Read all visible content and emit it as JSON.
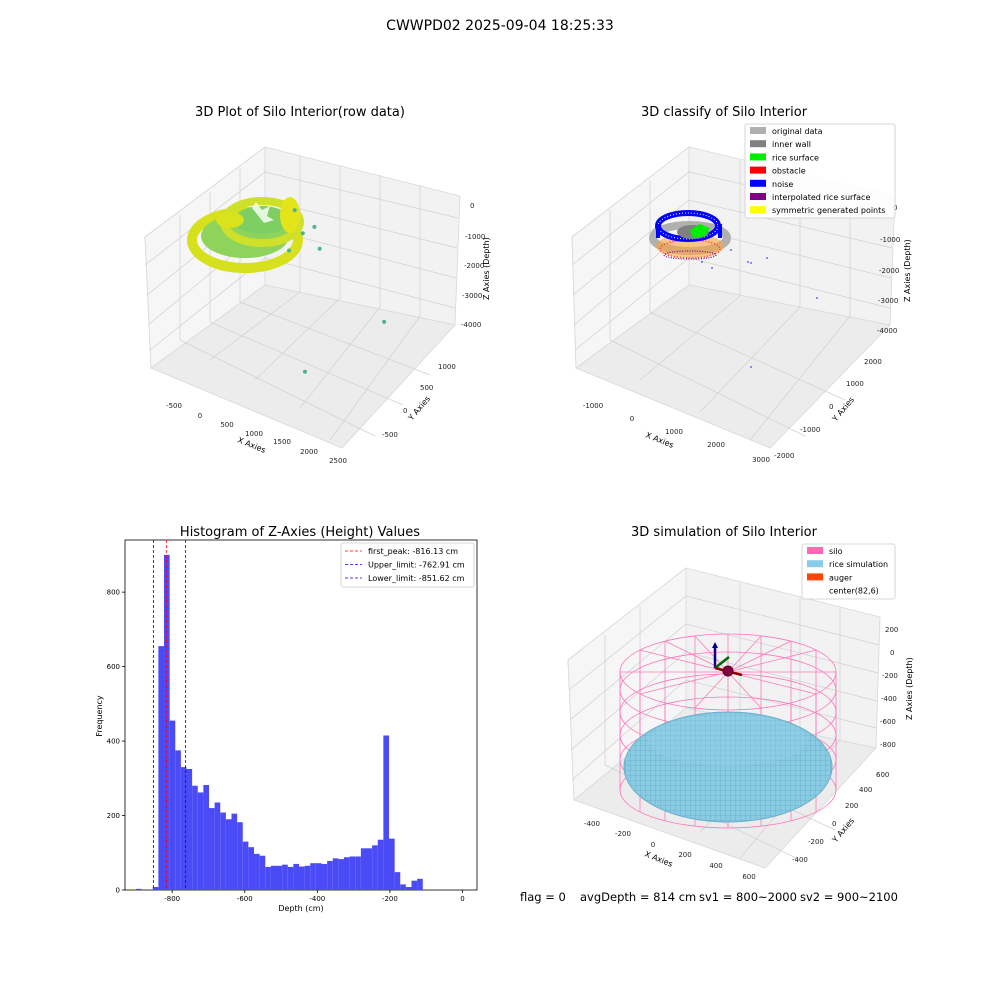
{
  "figure": {
    "suptitle": "CWWPD02 2025-09-04 18:25:33"
  },
  "chart_data": [
    {
      "type": "scatter",
      "subtype": "3d",
      "title": "3D Plot of Silo Interior(row data)",
      "xlabel": "X Axies",
      "ylabel": "Y Axies",
      "zlabel": "Z Axies (Depth)",
      "x_ticks": [
        "-500",
        "0",
        "500",
        "1000",
        "1500",
        "2000",
        "2500"
      ],
      "y_ticks": [
        "-500",
        "0",
        "500",
        "1000"
      ],
      "z_ticks": [
        "0",
        "-1000",
        "-2000",
        "-3000",
        "-4000"
      ],
      "xlim": [
        -800,
        2600
      ],
      "ylim": [
        -700,
        1200
      ],
      "zlim": [
        -4500,
        300
      ],
      "colormap": "viridis",
      "colors": {
        "surface_low": "#d7e21b",
        "surface_high": "#5fc66a",
        "outlier": "#4fb48a"
      },
      "approx_outliers": [
        {
          "x": 700,
          "y": 300,
          "z": -1000
        },
        {
          "x": 950,
          "y": 200,
          "z": -1300
        },
        {
          "x": 1050,
          "y": 300,
          "z": -1200
        },
        {
          "x": 1250,
          "y": 200,
          "z": -1500
        },
        {
          "x": 600,
          "y": 300,
          "z": -2000
        },
        {
          "x": 2450,
          "y": 150,
          "z": -2500
        },
        {
          "x": 1200,
          "y": 0,
          "z": -4200
        }
      ]
    },
    {
      "type": "scatter",
      "subtype": "3d",
      "title": "3D classify of Silo Interior",
      "xlabel": "X Axies",
      "ylabel": "Y Axies",
      "zlabel": "Z Axies (Depth)",
      "x_ticks": [
        "-1000",
        "0",
        "1000",
        "2000",
        "3000"
      ],
      "y_ticks": [
        "-2000",
        "-1000",
        "0",
        "1000",
        "2000"
      ],
      "z_ticks": [
        "0",
        "-1000",
        "-2000",
        "-3000",
        "-4000"
      ],
      "xlim": [
        -1300,
        3100
      ],
      "ylim": [
        -2200,
        2300
      ],
      "zlim": [
        -4500,
        300
      ],
      "legend": [
        {
          "label": "original data",
          "color": "#b0b0b0"
        },
        {
          "label": "inner wall",
          "color": "#808080"
        },
        {
          "label": "rice surface",
          "color": "#00ee00"
        },
        {
          "label": "obstacle",
          "color": "#ff0000"
        },
        {
          "label": "noise",
          "color": "#0000ff"
        },
        {
          "label": "interpolated rice surface",
          "color": "#800080"
        },
        {
          "label": "symmetric generated points",
          "color": "#ffff00"
        }
      ],
      "legend_position": "top-right"
    },
    {
      "type": "bar",
      "subtype": "histogram",
      "title": "Histogram of Z-Axies (Height) Values",
      "xlabel": "Depth (cm)",
      "ylabel": "Frequency",
      "xlim": [
        -930,
        40
      ],
      "ylim": [
        0,
        940
      ],
      "x_ticks": [
        -800,
        -600,
        -400,
        -200,
        0
      ],
      "y_ticks": [
        0,
        200,
        400,
        600,
        800
      ],
      "bar_color": "#4a4af7",
      "bin_width": 15.5,
      "bins": [
        {
          "x": -900,
          "y": 3
        },
        {
          "x": -884.5,
          "y": 0
        },
        {
          "x": -869,
          "y": 0
        },
        {
          "x": -853.5,
          "y": 8
        },
        {
          "x": -838,
          "y": 655
        },
        {
          "x": -822.5,
          "y": 900
        },
        {
          "x": -807,
          "y": 455
        },
        {
          "x": -791.5,
          "y": 375
        },
        {
          "x": -776,
          "y": 330
        },
        {
          "x": -760.5,
          "y": 325
        },
        {
          "x": -745,
          "y": 280
        },
        {
          "x": -729.5,
          "y": 262
        },
        {
          "x": -714,
          "y": 282
        },
        {
          "x": -698.5,
          "y": 220
        },
        {
          "x": -683,
          "y": 235
        },
        {
          "x": -667.5,
          "y": 208
        },
        {
          "x": -652,
          "y": 190
        },
        {
          "x": -636.5,
          "y": 205
        },
        {
          "x": -621,
          "y": 182
        },
        {
          "x": -605.5,
          "y": 130
        },
        {
          "x": -590,
          "y": 115
        },
        {
          "x": -574.5,
          "y": 97
        },
        {
          "x": -559,
          "y": 92
        },
        {
          "x": -543.5,
          "y": 62
        },
        {
          "x": -528,
          "y": 65
        },
        {
          "x": -512.5,
          "y": 65
        },
        {
          "x": -497,
          "y": 68
        },
        {
          "x": -481.5,
          "y": 62
        },
        {
          "x": -466,
          "y": 70
        },
        {
          "x": -450.5,
          "y": 63
        },
        {
          "x": -435,
          "y": 65
        },
        {
          "x": -419.5,
          "y": 72
        },
        {
          "x": -404,
          "y": 72
        },
        {
          "x": -388.5,
          "y": 70
        },
        {
          "x": -373,
          "y": 78
        },
        {
          "x": -357.5,
          "y": 85
        },
        {
          "x": -342,
          "y": 83
        },
        {
          "x": -326.5,
          "y": 88
        },
        {
          "x": -311,
          "y": 90
        },
        {
          "x": -295.5,
          "y": 90
        },
        {
          "x": -280,
          "y": 112
        },
        {
          "x": -264.5,
          "y": 112
        },
        {
          "x": -249,
          "y": 120
        },
        {
          "x": -233.5,
          "y": 135
        },
        {
          "x": -218,
          "y": 415
        },
        {
          "x": -202.5,
          "y": 138
        },
        {
          "x": -187,
          "y": 48
        },
        {
          "x": -171.5,
          "y": 15
        },
        {
          "x": -156,
          "y": 8
        },
        {
          "x": -140.5,
          "y": 25
        },
        {
          "x": -125,
          "y": 30
        }
      ],
      "lines": [
        {
          "label": "first_peak: -816.13 cm",
          "x": -816.13,
          "color": "#ff0000",
          "style": "dashed"
        },
        {
          "label": "Upper_limit: -762.91 cm",
          "x": -762.91,
          "color": "#0000ff",
          "style": "dashed"
        },
        {
          "label": "Lower_limit: -851.62 cm",
          "x": -851.62,
          "color": "#0000ff",
          "style": "dashed"
        }
      ],
      "legend_position": "top-right"
    },
    {
      "type": "scatter",
      "subtype": "3d-wireframe",
      "title": "3D simulation of Silo Interior",
      "xlabel": "X Axies",
      "ylabel": "Y Axies",
      "zlabel": "Z Axies (Depth)",
      "x_ticks": [
        "-400",
        "-200",
        "0",
        "200",
        "400",
        "600"
      ],
      "y_ticks": [
        "-400",
        "-200",
        "0",
        "200",
        "400",
        "600"
      ],
      "z_ticks": [
        "200",
        "0",
        "-200",
        "-400",
        "-600",
        "-800"
      ],
      "xlim": [
        -500,
        700
      ],
      "ylim": [
        -500,
        650
      ],
      "zlim": [
        -950,
        300
      ],
      "legend": [
        {
          "label": "silo",
          "color": "#ff69b4"
        },
        {
          "label": "rice simulation",
          "color": "#87ceeb"
        },
        {
          "label": "auger",
          "color": "#ff4500"
        },
        {
          "label": "center(82,6)",
          "color": "#ffffff"
        }
      ],
      "legend_position": "top-right",
      "rice_depth_cm": 814
    }
  ],
  "status": {
    "flag": "flag = 0",
    "avg_depth": "avgDepth = 814 cm",
    "sv1": "sv1 = 800~2000",
    "sv2": "sv2 = 900~2100"
  }
}
